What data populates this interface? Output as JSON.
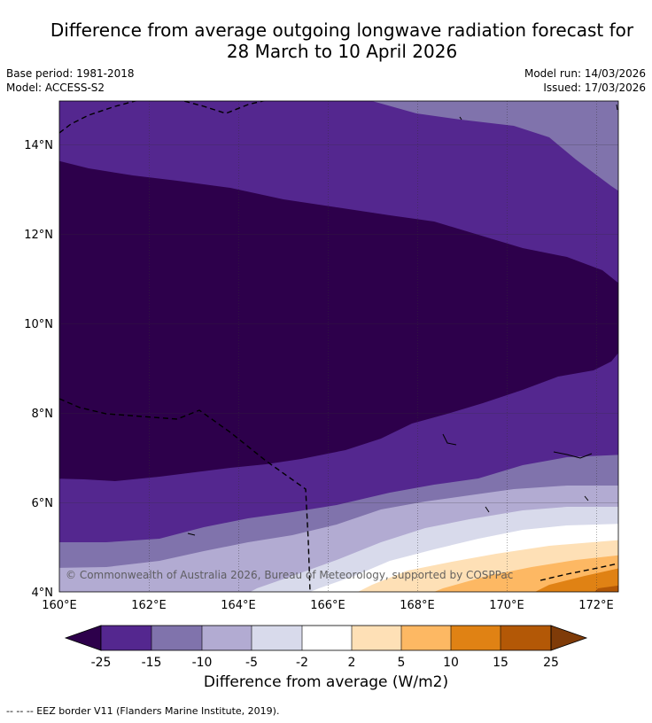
{
  "title": {
    "line1": "Difference from average outgoing longwave radiation forecast for",
    "line2": "28 March to 10 April 2026"
  },
  "meta": {
    "base_period": "Base period: 1981-2018",
    "model": "Model: ACCESS-S2",
    "model_run": "Model run: 14/03/2026",
    "issued": "Issued: 17/03/2026"
  },
  "map": {
    "x_ticks": [
      "160°E",
      "162°E",
      "164°E",
      "166°E",
      "168°E",
      "170°E",
      "172°E"
    ],
    "y_ticks": [
      "14°N",
      "12°N",
      "10°N",
      "8°N",
      "6°N",
      "4°N"
    ],
    "copyright": "© Commonwealth of Australia 2026, Bureau of Meteorology, supported by COSPPac"
  },
  "colorbar": {
    "labels": [
      "-25",
      "-15",
      "-10",
      "-5",
      "-2",
      "2",
      "5",
      "10",
      "15",
      "25"
    ],
    "colors": {
      "below": "#2a0a4b",
      "lt25": "#2d004b",
      "b25_15": "#54278f",
      "b15_10": "#8073ac",
      "b10_5": "#b2abd2",
      "b5_2": "#d8daeb",
      "b2_2": "#ffffff",
      "b2_5": "#fee0b6",
      "b5_10": "#fdb863",
      "b10_15": "#e08214",
      "b15_25": "#b35806",
      "above": "#7f3b08"
    },
    "title": "Difference from average (W/m2)"
  },
  "footnote": "-- -- -- EEZ border V11 (Flanders Marine Institute, 2019)."
}
